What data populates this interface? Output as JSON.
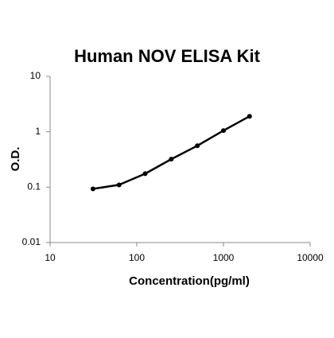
{
  "chart_data": {
    "type": "line",
    "title": "Human NOV ELISA Kit",
    "x_label": "Concentration(pg/ml)",
    "y_label": "O.D.",
    "x": [
      31.25,
      62.5,
      125,
      250,
      500,
      1000,
      2000
    ],
    "values": [
      0.093,
      0.11,
      0.175,
      0.32,
      0.56,
      1.05,
      1.9
    ],
    "color": "#000000",
    "markers": true,
    "log_x": true,
    "log_y": true,
    "xlim": [
      10,
      10000
    ],
    "xticks": [
      10,
      100,
      1000,
      10000
    ],
    "ylim": [
      0.01,
      10
    ],
    "yticks": [
      0.01,
      0.1,
      1,
      10
    ],
    "grid": false
  }
}
